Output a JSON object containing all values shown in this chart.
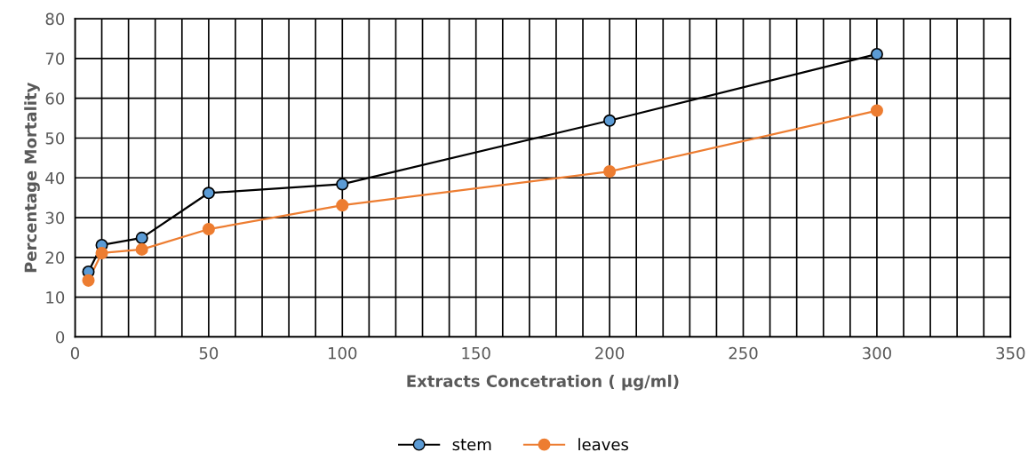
{
  "chart_data": {
    "type": "line",
    "xlabel": "Extracts Concetration ( µg/ml)",
    "ylabel": "Percentage Mortality",
    "xlim": [
      0,
      350
    ],
    "ylim": [
      0,
      80
    ],
    "xticks": [
      0,
      {
        "value": 10,
        "label": null
      },
      {
        "value": 20,
        "label": null
      },
      {
        "value": 30,
        "label": null
      },
      {
        "value": 40,
        "label": null
      },
      50,
      {
        "value": 60,
        "label": null
      },
      {
        "value": 70,
        "label": null
      },
      {
        "value": 80,
        "label": null
      },
      {
        "value": 90,
        "label": null
      },
      100,
      {
        "value": 110,
        "label": null
      },
      {
        "value": 120,
        "label": null
      },
      {
        "value": 130,
        "label": null
      },
      {
        "value": 140,
        "label": null
      },
      150,
      {
        "value": 160,
        "label": null
      },
      {
        "value": 170,
        "label": null
      },
      {
        "value": 180,
        "label": null
      },
      {
        "value": 190,
        "label": null
      },
      200,
      {
        "value": 210,
        "label": null
      },
      {
        "value": 220,
        "label": null
      },
      {
        "value": 230,
        "label": null
      },
      {
        "value": 240,
        "label": null
      },
      250,
      {
        "value": 260,
        "label": null
      },
      {
        "value": 270,
        "label": null
      },
      {
        "value": 280,
        "label": null
      },
      {
        "value": 290,
        "label": null
      },
      300,
      {
        "value": 310,
        "label": null
      },
      {
        "value": 320,
        "label": null
      },
      {
        "value": 330,
        "label": null
      },
      {
        "value": 340,
        "label": null
      },
      350
    ],
    "yticks": [
      0,
      10,
      20,
      30,
      40,
      50,
      60,
      70,
      80
    ],
    "x": [
      5,
      10,
      25,
      50,
      100,
      200,
      300
    ],
    "series": [
      {
        "name": "stem",
        "color": "#000000",
        "colors": [
          "#5b9bd5",
          "#5b9bd5",
          "#5b9bd5",
          "#5b9bd5",
          "#5b9bd5",
          "#5b9bd5",
          "#5b9bd5"
        ],
        "values": [
          16.4,
          23.1,
          24.9,
          36.2,
          38.4,
          54.4,
          71.1
        ]
      },
      {
        "name": "leaves",
        "color": "#ed7d31",
        "colors": [
          "#ed7d31",
          "#ed7d31",
          "#ed7d31",
          "#ed7d31",
          "#ed7d31",
          "#ed7d31",
          "#ed7d31"
        ],
        "values": [
          14.2,
          21.1,
          22.0,
          27.1,
          33.1,
          41.6,
          56.9
        ]
      }
    ],
    "marker": "circle",
    "line_style": "solid",
    "grid": true,
    "legend": "bottom"
  }
}
